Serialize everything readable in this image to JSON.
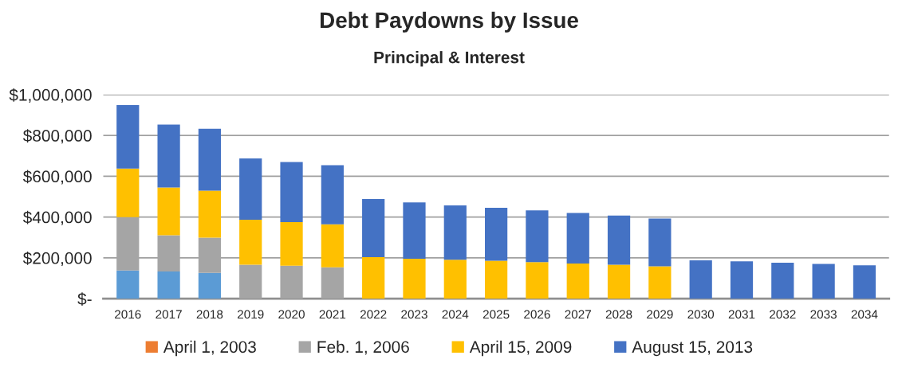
{
  "chart_data": {
    "type": "bar",
    "title": "Debt Paydowns by Issue",
    "subtitle": "Principal & Interest",
    "stacked": true,
    "categories": [
      "2016",
      "2017",
      "2018",
      "2019",
      "2020",
      "2021",
      "2022",
      "2023",
      "2024",
      "2025",
      "2026",
      "2027",
      "2028",
      "2029",
      "2030",
      "2031",
      "2032",
      "2033",
      "2034"
    ],
    "series": [
      {
        "color": "#5b9bd5",
        "values": [
          138000,
          133000,
          126000,
          0,
          0,
          0,
          0,
          0,
          0,
          0,
          0,
          0,
          0,
          0,
          0,
          0,
          0,
          0,
          0
        ]
      },
      {
        "name": "April 1, 2003",
        "color": "#ed7d31",
        "values": [
          0,
          0,
          0,
          0,
          0,
          0,
          0,
          0,
          0,
          0,
          0,
          0,
          0,
          0,
          0,
          0,
          0,
          0,
          0
        ]
      },
      {
        "name": "Feb. 1, 2006",
        "color": "#a5a5a5",
        "values": [
          261000,
          178000,
          173000,
          166000,
          161000,
          154000,
          0,
          0,
          0,
          0,
          0,
          0,
          0,
          0,
          0,
          0,
          0,
          0,
          0
        ]
      },
      {
        "name": "April 15, 2009",
        "color": "#ffc000",
        "values": [
          238000,
          234000,
          230000,
          221000,
          214000,
          210000,
          203000,
          196000,
          191000,
          186000,
          179000,
          172000,
          166000,
          159000,
          0,
          0,
          0,
          0,
          0
        ]
      },
      {
        "name": "August 15, 2013",
        "color": "#4472c4",
        "values": [
          312000,
          308000,
          304000,
          300000,
          295000,
          290000,
          285000,
          276000,
          266000,
          259000,
          254000,
          248000,
          241000,
          234000,
          188000,
          183000,
          176000,
          170000,
          163000
        ]
      }
    ],
    "ylim": [
      0,
      1000000
    ],
    "yticks": [
      {
        "value": 0,
        "label": "$-"
      },
      {
        "value": 200000,
        "label": "$200,000"
      },
      {
        "value": 400000,
        "label": "$400,000"
      },
      {
        "value": 600000,
        "label": "$600,000"
      },
      {
        "value": 800000,
        "label": "$800,000"
      },
      {
        "value": 1000000,
        "label": "$1,000,000"
      }
    ],
    "grid": "y",
    "legend": "bottom"
  }
}
